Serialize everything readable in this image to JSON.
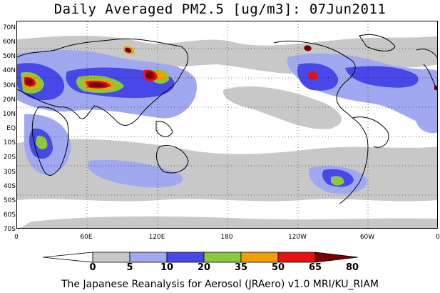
{
  "title": "Daily Averaged PM2.5 [ug/m3]: 07Jun2011",
  "footer": "The Japanese Reanalysis for Aerosol (JRAero) v1.0 MRI/KU_RIAM",
  "lat_labels": [
    "70N",
    "60N",
    "50N",
    "40N",
    "30N",
    "20N",
    "10N",
    "EQ",
    "10S",
    "20S",
    "30S",
    "40S",
    "50S",
    "60S",
    "70S"
  ],
  "lon_labels": [
    "0",
    "60E",
    "120E",
    "180",
    "120W",
    "60W",
    "0"
  ],
  "colorbar": {
    "ticks": [
      "0",
      "5",
      "10",
      "20",
      "35",
      "50",
      "65",
      "80"
    ],
    "colors": [
      "#ffffff",
      "#c8c8c8",
      "#a0a8f0",
      "#4848e8",
      "#8cc83c",
      "#f0a000",
      "#e81010",
      "#780000"
    ]
  }
}
